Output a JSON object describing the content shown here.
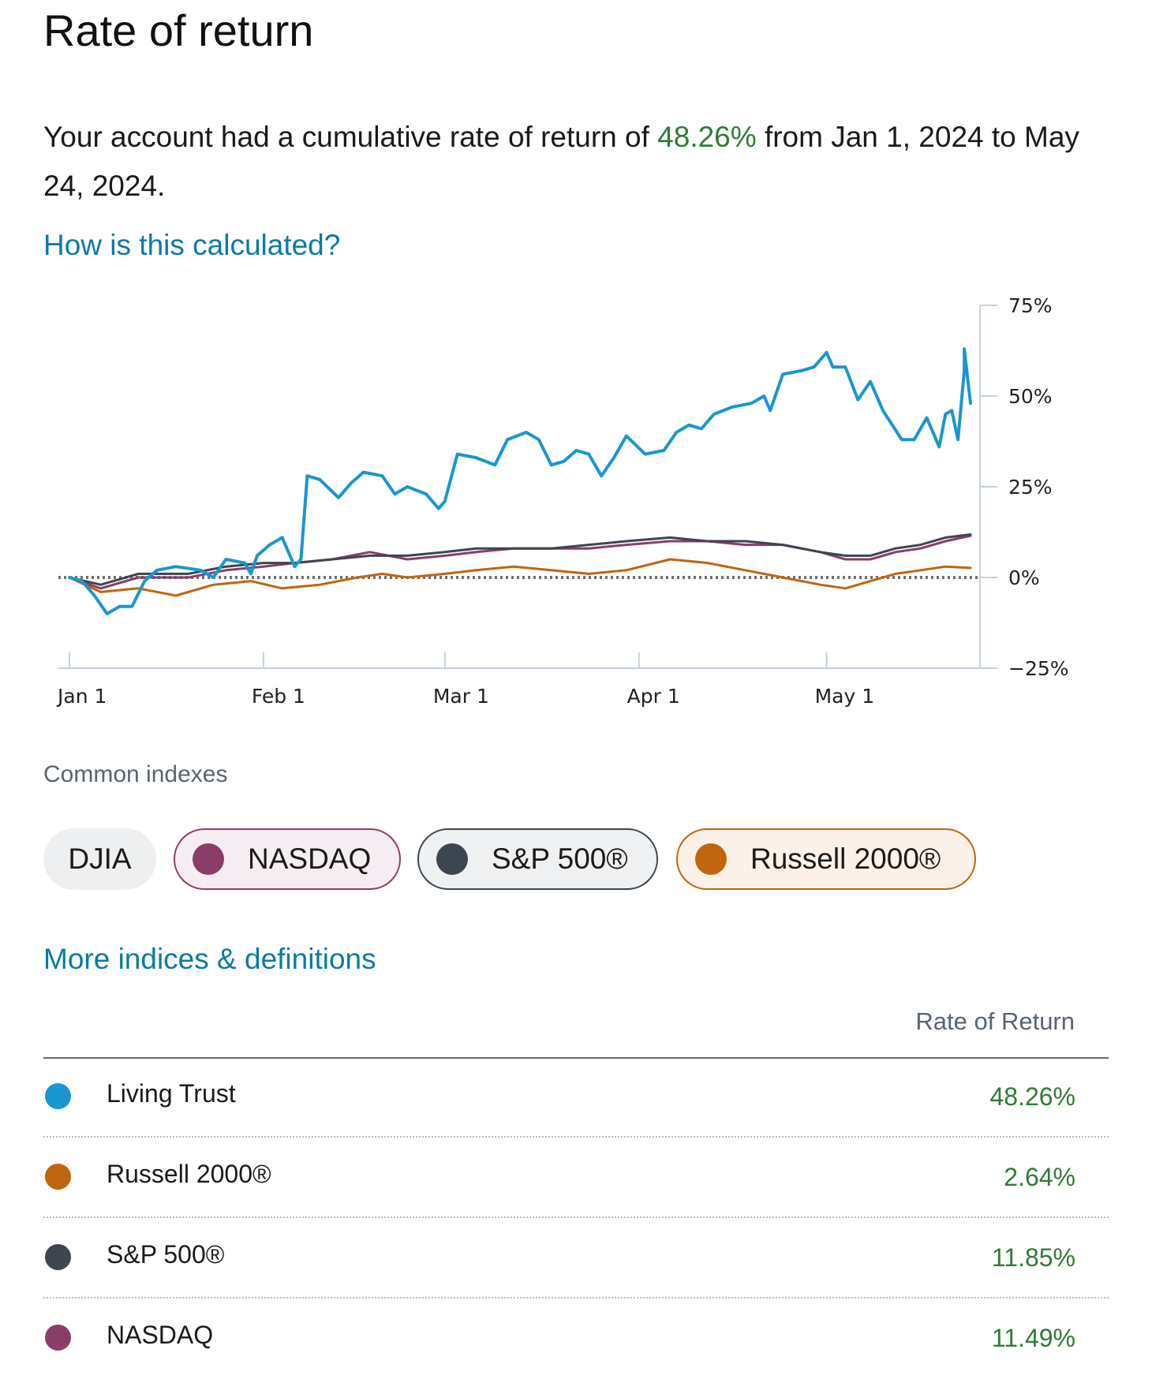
{
  "title": "Rate of return",
  "summary": {
    "prefix": "Your account had a cumulative rate of return of",
    "value": "48.26%",
    "suffix": "from Jan 1, 2024 to May 24, 2024."
  },
  "links": {
    "how_calculated": "How is this calculated?",
    "more_indices": "More indices & definitions"
  },
  "chart_data": {
    "type": "line",
    "x_ticks": [
      "Jan 1",
      "Feb 1",
      "Mar 1",
      "Apr 1",
      "May 1"
    ],
    "y_ticks": [
      "75%",
      "50%",
      "25%",
      "0%",
      "−25%"
    ],
    "y_tick_values": [
      75,
      50,
      25,
      0,
      -25
    ],
    "ylim": [
      -25,
      75
    ],
    "x_range": [
      "2024-01-01",
      "2024-05-24"
    ],
    "baseline": 0,
    "series": [
      {
        "name": "Living Trust",
        "color": "#1a96cf",
        "points": [
          [
            "2024-01-01",
            0
          ],
          [
            "2024-01-03",
            -1
          ],
          [
            "2024-01-05",
            -5
          ],
          [
            "2024-01-07",
            -10
          ],
          [
            "2024-01-09",
            -8
          ],
          [
            "2024-01-11",
            -8
          ],
          [
            "2024-01-13",
            -1
          ],
          [
            "2024-01-15",
            2
          ],
          [
            "2024-01-18",
            3
          ],
          [
            "2024-01-22",
            2
          ],
          [
            "2024-01-24",
            0
          ],
          [
            "2024-01-26",
            5
          ],
          [
            "2024-01-29",
            4
          ],
          [
            "2024-01-30",
            1
          ],
          [
            "2024-01-31",
            6
          ],
          [
            "2024-02-02",
            9
          ],
          [
            "2024-02-04",
            11
          ],
          [
            "2024-02-06",
            3
          ],
          [
            "2024-02-07",
            5
          ],
          [
            "2024-02-08",
            28
          ],
          [
            "2024-02-10",
            27
          ],
          [
            "2024-02-13",
            22
          ],
          [
            "2024-02-15",
            26
          ],
          [
            "2024-02-17",
            29
          ],
          [
            "2024-02-20",
            28
          ],
          [
            "2024-02-22",
            23
          ],
          [
            "2024-02-24",
            25
          ],
          [
            "2024-02-27",
            23
          ],
          [
            "2024-02-29",
            19
          ],
          [
            "2024-03-01",
            21
          ],
          [
            "2024-03-03",
            34
          ],
          [
            "2024-03-06",
            33
          ],
          [
            "2024-03-09",
            31
          ],
          [
            "2024-03-11",
            38
          ],
          [
            "2024-03-14",
            40
          ],
          [
            "2024-03-16",
            38
          ],
          [
            "2024-03-18",
            31
          ],
          [
            "2024-03-20",
            32
          ],
          [
            "2024-03-22",
            35
          ],
          [
            "2024-03-24",
            34
          ],
          [
            "2024-03-26",
            28
          ],
          [
            "2024-03-28",
            33
          ],
          [
            "2024-03-30",
            39
          ],
          [
            "2024-04-02",
            34
          ],
          [
            "2024-04-05",
            35
          ],
          [
            "2024-04-07",
            40
          ],
          [
            "2024-04-09",
            42
          ],
          [
            "2024-04-11",
            41
          ],
          [
            "2024-04-13",
            45
          ],
          [
            "2024-04-16",
            47
          ],
          [
            "2024-04-19",
            48
          ],
          [
            "2024-04-21",
            50
          ],
          [
            "2024-04-22",
            46
          ],
          [
            "2024-04-24",
            56
          ],
          [
            "2024-04-27",
            57
          ],
          [
            "2024-04-29",
            58
          ],
          [
            "2024-05-01",
            62
          ],
          [
            "2024-05-02",
            58
          ],
          [
            "2024-05-04",
            58
          ],
          [
            "2024-05-06",
            49
          ],
          [
            "2024-05-08",
            54
          ],
          [
            "2024-05-10",
            46
          ],
          [
            "2024-05-13",
            38
          ],
          [
            "2024-05-15",
            38
          ],
          [
            "2024-05-17",
            44
          ],
          [
            "2024-05-19",
            36
          ],
          [
            "2024-05-20",
            45
          ],
          [
            "2024-05-21",
            46
          ],
          [
            "2024-05-22",
            38
          ],
          [
            "2024-05-23",
            57
          ],
          [
            "2024-05-23",
            63
          ],
          [
            "2024-05-24",
            48
          ]
        ]
      },
      {
        "name": "NASDAQ",
        "color": "#8a3d68",
        "points": [
          [
            "2024-01-01",
            0
          ],
          [
            "2024-01-06",
            -3
          ],
          [
            "2024-01-12",
            0
          ],
          [
            "2024-01-20",
            0
          ],
          [
            "2024-01-26",
            2
          ],
          [
            "2024-02-01",
            3
          ],
          [
            "2024-02-06",
            4
          ],
          [
            "2024-02-12",
            5
          ],
          [
            "2024-02-18",
            7
          ],
          [
            "2024-02-24",
            5
          ],
          [
            "2024-03-01",
            6
          ],
          [
            "2024-03-06",
            7
          ],
          [
            "2024-03-12",
            8
          ],
          [
            "2024-03-18",
            8
          ],
          [
            "2024-03-24",
            8
          ],
          [
            "2024-03-30",
            9
          ],
          [
            "2024-04-06",
            10
          ],
          [
            "2024-04-12",
            10
          ],
          [
            "2024-04-18",
            9
          ],
          [
            "2024-04-24",
            9
          ],
          [
            "2024-04-30",
            7
          ],
          [
            "2024-05-04",
            5
          ],
          [
            "2024-05-08",
            5
          ],
          [
            "2024-05-12",
            7
          ],
          [
            "2024-05-16",
            8
          ],
          [
            "2024-05-20",
            10
          ],
          [
            "2024-05-24",
            11.49
          ]
        ]
      },
      {
        "name": "S&P 500®",
        "color": "#3d4550",
        "points": [
          [
            "2024-01-01",
            0
          ],
          [
            "2024-01-06",
            -2
          ],
          [
            "2024-01-12",
            1
          ],
          [
            "2024-01-20",
            1
          ],
          [
            "2024-01-26",
            3
          ],
          [
            "2024-02-01",
            4
          ],
          [
            "2024-02-06",
            4
          ],
          [
            "2024-02-12",
            5
          ],
          [
            "2024-02-18",
            6
          ],
          [
            "2024-02-24",
            6
          ],
          [
            "2024-03-01",
            7
          ],
          [
            "2024-03-06",
            8
          ],
          [
            "2024-03-12",
            8
          ],
          [
            "2024-03-18",
            8
          ],
          [
            "2024-03-24",
            9
          ],
          [
            "2024-03-30",
            10
          ],
          [
            "2024-04-06",
            11
          ],
          [
            "2024-04-12",
            10
          ],
          [
            "2024-04-18",
            10
          ],
          [
            "2024-04-24",
            9
          ],
          [
            "2024-04-30",
            7
          ],
          [
            "2024-05-04",
            6
          ],
          [
            "2024-05-08",
            6
          ],
          [
            "2024-05-12",
            8
          ],
          [
            "2024-05-16",
            9
          ],
          [
            "2024-05-20",
            11
          ],
          [
            "2024-05-24",
            11.85
          ]
        ]
      },
      {
        "name": "Russell 2000®",
        "color": "#c0650f",
        "points": [
          [
            "2024-01-01",
            0
          ],
          [
            "2024-01-06",
            -4
          ],
          [
            "2024-01-12",
            -3
          ],
          [
            "2024-01-18",
            -5
          ],
          [
            "2024-01-24",
            -2
          ],
          [
            "2024-01-30",
            -1
          ],
          [
            "2024-02-04",
            -3
          ],
          [
            "2024-02-10",
            -2
          ],
          [
            "2024-02-16",
            0
          ],
          [
            "2024-02-20",
            1
          ],
          [
            "2024-02-24",
            0
          ],
          [
            "2024-03-01",
            1
          ],
          [
            "2024-03-06",
            2
          ],
          [
            "2024-03-12",
            3
          ],
          [
            "2024-03-18",
            2
          ],
          [
            "2024-03-24",
            1
          ],
          [
            "2024-03-30",
            2
          ],
          [
            "2024-04-06",
            5
          ],
          [
            "2024-04-12",
            4
          ],
          [
            "2024-04-18",
            2
          ],
          [
            "2024-04-24",
            0
          ],
          [
            "2024-04-30",
            -2
          ],
          [
            "2024-05-04",
            -3
          ],
          [
            "2024-05-08",
            -1
          ],
          [
            "2024-05-12",
            1
          ],
          [
            "2024-05-16",
            2
          ],
          [
            "2024-05-20",
            3
          ],
          [
            "2024-05-24",
            2.64
          ]
        ]
      }
    ]
  },
  "indexes": {
    "label": "Common indexes",
    "chips": [
      {
        "label": "DJIA",
        "selected": false
      },
      {
        "label": "NASDAQ",
        "selected": true,
        "color": "#8a3d68"
      },
      {
        "label": "S&P 500®",
        "selected": true,
        "color": "#3d4550"
      },
      {
        "label": "Russell 2000®",
        "selected": true,
        "color": "#c0650f"
      }
    ]
  },
  "table": {
    "header": "Rate of Return",
    "rows": [
      {
        "name": "Living Trust",
        "value": "48.26%",
        "color": "#1a96cf"
      },
      {
        "name": "Russell 2000®",
        "value": "2.64%",
        "color": "#c0650f"
      },
      {
        "name": "S&P 500®",
        "value": "11.85%",
        "color": "#3d4550"
      },
      {
        "name": "NASDAQ",
        "value": "11.49%",
        "color": "#8a3d68"
      }
    ]
  }
}
